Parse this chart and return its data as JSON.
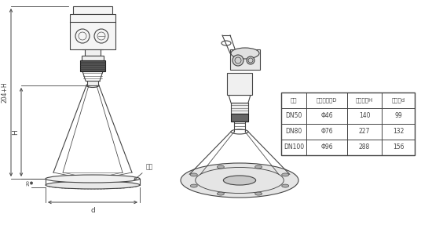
{
  "bg_color": "#ffffff",
  "line_color": "#444444",
  "dark_color": "#222222",
  "gray_color": "#888888",
  "light_gray": "#dddddd",
  "table_header": [
    "法兰",
    "喇叭口直径D",
    "喇叭高度H",
    "四孔盘d"
  ],
  "table_data": [
    [
      "DN50",
      "Φ46",
      "140",
      "99"
    ],
    [
      "DN80",
      "Φ76",
      "227",
      "132"
    ],
    [
      "DN100",
      "Φ96",
      "288",
      "156"
    ]
  ],
  "dim_204H": "204+H",
  "dim_H": "H",
  "dim_20": "20",
  "dim_d": "d",
  "dim_flange": "法兰"
}
